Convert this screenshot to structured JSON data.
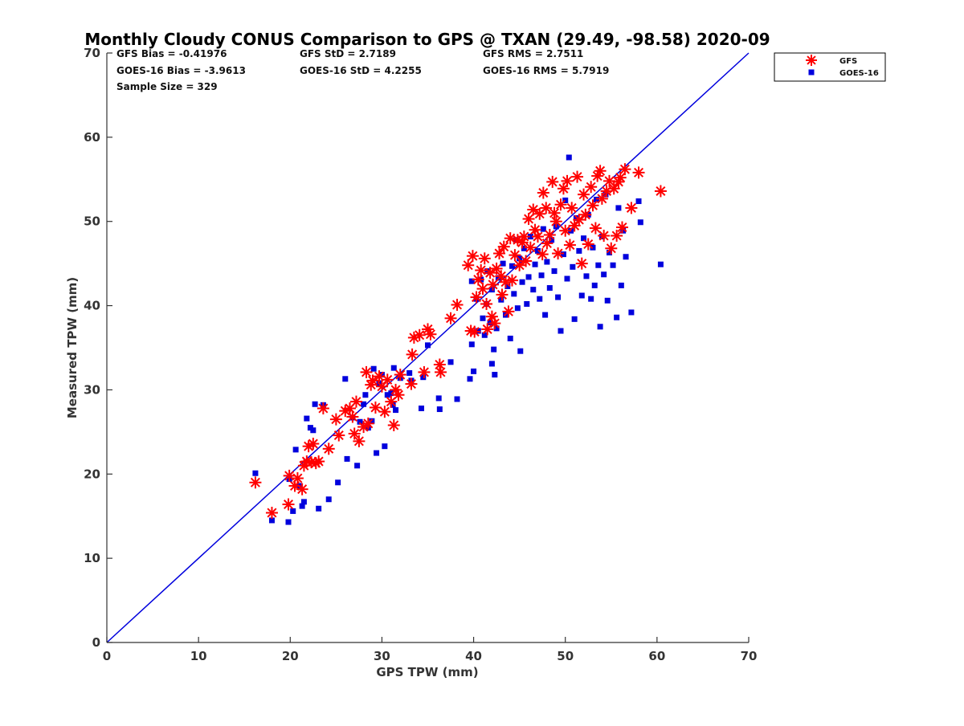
{
  "chart_data": {
    "type": "scatter",
    "title": "Monthly Cloudy CONUS Comparison to GPS @ TXAN (29.49, -98.58) 2020-09",
    "xlabel": "GPS TPW (mm)",
    "ylabel": "Measured TPW (mm)",
    "xlim": [
      0,
      70
    ],
    "ylim": [
      0,
      70
    ],
    "xticks": [
      "0",
      "10",
      "20",
      "30",
      "40",
      "50",
      "60",
      "70"
    ],
    "yticks": [
      "0",
      "10",
      "20",
      "30",
      "40",
      "50",
      "60",
      "70"
    ],
    "grid": false,
    "legend_position": "top-right outside",
    "stats": {
      "gfs_bias": "GFS Bias = -0.41976",
      "gfs_std": "GFS StD = 2.7189",
      "gfs_rms": "GFS RMS = 2.7511",
      "goes_bias": "GOES-16 Bias = -3.9613",
      "goes_std": "GOES-16 StD = 4.2255",
      "goes_rms": "GOES-16 RMS = 5.7919",
      "sample_size": "Sample Size = 329"
    },
    "reference_line": {
      "x": [
        0,
        70
      ],
      "y": [
        0,
        70
      ],
      "color": "#0000dd"
    },
    "series": [
      {
        "name": "GFS",
        "marker": "asterisk",
        "color": "#ff0000",
        "points": [
          [
            16.2,
            19.0
          ],
          [
            18.0,
            15.4
          ],
          [
            19.8,
            16.4
          ],
          [
            19.9,
            19.8
          ],
          [
            20.5,
            18.6
          ],
          [
            20.8,
            19.5
          ],
          [
            21.3,
            18.2
          ],
          [
            21.5,
            21.0
          ],
          [
            21.8,
            21.5
          ],
          [
            22.0,
            23.3
          ],
          [
            22.3,
            21.4
          ],
          [
            22.5,
            23.6
          ],
          [
            22.8,
            21.3
          ],
          [
            23.1,
            21.5
          ],
          [
            23.6,
            27.8
          ],
          [
            24.2,
            23.0
          ],
          [
            25.0,
            26.5
          ],
          [
            25.3,
            24.6
          ],
          [
            26.0,
            27.5
          ],
          [
            26.5,
            27.8
          ],
          [
            26.8,
            26.8
          ],
          [
            27.0,
            24.8
          ],
          [
            27.2,
            28.6
          ],
          [
            27.5,
            23.9
          ],
          [
            28.0,
            25.6
          ],
          [
            28.3,
            32.1
          ],
          [
            28.5,
            26.0
          ],
          [
            28.8,
            30.6
          ],
          [
            29.0,
            31.1
          ],
          [
            29.3,
            27.9
          ],
          [
            29.7,
            31.6
          ],
          [
            30.0,
            30.4
          ],
          [
            30.3,
            27.4
          ],
          [
            30.6,
            31.2
          ],
          [
            31.0,
            28.6
          ],
          [
            31.3,
            25.8
          ],
          [
            31.5,
            30.0
          ],
          [
            31.8,
            29.4
          ],
          [
            32.0,
            31.8
          ],
          [
            33.2,
            30.7
          ],
          [
            33.5,
            36.2
          ],
          [
            33.3,
            34.2
          ],
          [
            34.1,
            36.5
          ],
          [
            34.6,
            32.1
          ],
          [
            35.0,
            37.2
          ],
          [
            35.3,
            36.6
          ],
          [
            36.3,
            33.0
          ],
          [
            36.4,
            32.1
          ],
          [
            37.5,
            38.5
          ],
          [
            38.2,
            40.1
          ],
          [
            39.4,
            44.8
          ],
          [
            39.7,
            37.0
          ],
          [
            39.9,
            45.9
          ],
          [
            40.1,
            36.9
          ],
          [
            40.3,
            41.0
          ],
          [
            40.5,
            43.1
          ],
          [
            40.8,
            44.2
          ],
          [
            41.0,
            42.0
          ],
          [
            41.2,
            45.6
          ],
          [
            41.4,
            40.2
          ],
          [
            41.5,
            37.2
          ],
          [
            41.8,
            43.9
          ],
          [
            42.0,
            38.7
          ],
          [
            42.1,
            42.5
          ],
          [
            42.3,
            37.9
          ],
          [
            42.5,
            44.4
          ],
          [
            42.8,
            46.2
          ],
          [
            43.0,
            43.5
          ],
          [
            43.1,
            41.3
          ],
          [
            43.3,
            47.0
          ],
          [
            43.5,
            42.8
          ],
          [
            43.8,
            39.3
          ],
          [
            44.0,
            48.0
          ],
          [
            44.2,
            43.0
          ],
          [
            44.5,
            46.0
          ],
          [
            44.8,
            47.8
          ],
          [
            45.0,
            44.8
          ],
          [
            45.3,
            47.5
          ],
          [
            45.5,
            48.2
          ],
          [
            45.7,
            45.3
          ],
          [
            46.0,
            50.3
          ],
          [
            46.2,
            46.9
          ],
          [
            46.5,
            51.4
          ],
          [
            46.7,
            49.0
          ],
          [
            47.0,
            48.2
          ],
          [
            47.2,
            50.9
          ],
          [
            47.5,
            46.1
          ],
          [
            47.6,
            53.4
          ],
          [
            47.9,
            51.6
          ],
          [
            48.0,
            47.4
          ],
          [
            48.3,
            48.4
          ],
          [
            48.6,
            54.7
          ],
          [
            48.8,
            51.0
          ],
          [
            49.0,
            50.0
          ],
          [
            49.2,
            46.2
          ],
          [
            49.5,
            52.0
          ],
          [
            49.8,
            53.9
          ],
          [
            50.0,
            48.9
          ],
          [
            50.2,
            54.8
          ],
          [
            50.5,
            47.2
          ],
          [
            50.7,
            51.6
          ],
          [
            51.0,
            49.5
          ],
          [
            51.3,
            55.3
          ],
          [
            51.5,
            50.2
          ],
          [
            51.8,
            45.0
          ],
          [
            52.0,
            53.2
          ],
          [
            52.2,
            50.8
          ],
          [
            52.5,
            47.3
          ],
          [
            52.8,
            54.1
          ],
          [
            53.0,
            51.9
          ],
          [
            53.3,
            49.2
          ],
          [
            53.5,
            55.4
          ],
          [
            53.8,
            56.0
          ],
          [
            54.0,
            52.7
          ],
          [
            54.2,
            48.3
          ],
          [
            54.5,
            53.6
          ],
          [
            54.8,
            54.8
          ],
          [
            55.0,
            46.8
          ],
          [
            55.3,
            53.9
          ],
          [
            55.6,
            48.3
          ],
          [
            55.8,
            54.7
          ],
          [
            56.0,
            55.2
          ],
          [
            56.2,
            49.3
          ],
          [
            56.5,
            56.2
          ],
          [
            57.2,
            51.6
          ],
          [
            58.0,
            55.8
          ],
          [
            60.4,
            53.6
          ]
        ]
      },
      {
        "name": "GOES-16",
        "marker": "square",
        "color": "#0000dd",
        "points": [
          [
            16.2,
            20.1
          ],
          [
            18.0,
            14.5
          ],
          [
            19.8,
            14.3
          ],
          [
            19.9,
            19.4
          ],
          [
            20.3,
            15.6
          ],
          [
            20.6,
            22.9
          ],
          [
            21.0,
            18.6
          ],
          [
            21.3,
            16.2
          ],
          [
            21.5,
            16.7
          ],
          [
            21.8,
            26.6
          ],
          [
            22.2,
            25.5
          ],
          [
            22.5,
            25.2
          ],
          [
            22.7,
            28.3
          ],
          [
            23.1,
            15.9
          ],
          [
            23.6,
            28.2
          ],
          [
            24.2,
            17.0
          ],
          [
            25.2,
            19.0
          ],
          [
            26.0,
            31.3
          ],
          [
            26.2,
            21.8
          ],
          [
            26.8,
            26.7
          ],
          [
            27.3,
            21.0
          ],
          [
            27.6,
            26.2
          ],
          [
            28.0,
            28.3
          ],
          [
            28.2,
            29.4
          ],
          [
            28.5,
            25.5
          ],
          [
            28.9,
            26.3
          ],
          [
            29.1,
            32.5
          ],
          [
            29.4,
            22.5
          ],
          [
            29.7,
            30.8
          ],
          [
            30.0,
            31.8
          ],
          [
            30.3,
            23.3
          ],
          [
            30.6,
            29.4
          ],
          [
            31.0,
            29.6
          ],
          [
            31.2,
            28.2
          ],
          [
            31.3,
            32.6
          ],
          [
            31.5,
            27.6
          ],
          [
            32.0,
            31.4
          ],
          [
            33.0,
            32.0
          ],
          [
            33.2,
            31.1
          ],
          [
            34.3,
            27.8
          ],
          [
            34.5,
            31.5
          ],
          [
            35.0,
            35.3
          ],
          [
            36.2,
            29.0
          ],
          [
            36.3,
            27.7
          ],
          [
            37.5,
            33.3
          ],
          [
            38.2,
            28.9
          ],
          [
            39.6,
            31.3
          ],
          [
            39.8,
            35.4
          ],
          [
            39.8,
            42.9
          ],
          [
            40.0,
            32.2
          ],
          [
            40.3,
            40.8
          ],
          [
            40.5,
            37.0
          ],
          [
            40.8,
            43.1
          ],
          [
            41.0,
            38.5
          ],
          [
            41.2,
            36.5
          ],
          [
            41.4,
            40.2
          ],
          [
            41.5,
            44.1
          ],
          [
            41.8,
            38.0
          ],
          [
            42.0,
            33.1
          ],
          [
            42.0,
            41.9
          ],
          [
            42.2,
            34.8
          ],
          [
            42.3,
            31.8
          ],
          [
            42.5,
            37.3
          ],
          [
            42.7,
            43.3
          ],
          [
            43.0,
            40.7
          ],
          [
            43.2,
            45.0
          ],
          [
            43.5,
            38.9
          ],
          [
            43.7,
            42.3
          ],
          [
            44.0,
            36.1
          ],
          [
            44.2,
            44.7
          ],
          [
            44.4,
            41.4
          ],
          [
            44.6,
            47.8
          ],
          [
            44.8,
            39.7
          ],
          [
            45.0,
            45.6
          ],
          [
            45.1,
            34.6
          ],
          [
            45.3,
            42.8
          ],
          [
            45.5,
            46.8
          ],
          [
            45.8,
            40.2
          ],
          [
            46.0,
            43.4
          ],
          [
            46.2,
            48.2
          ],
          [
            46.5,
            41.9
          ],
          [
            46.7,
            44.9
          ],
          [
            47.0,
            46.5
          ],
          [
            47.2,
            40.8
          ],
          [
            47.4,
            43.6
          ],
          [
            47.6,
            49.1
          ],
          [
            47.8,
            38.9
          ],
          [
            48.0,
            45.2
          ],
          [
            48.3,
            42.1
          ],
          [
            48.5,
            47.8
          ],
          [
            48.8,
            44.1
          ],
          [
            49.0,
            49.4
          ],
          [
            49.2,
            41.0
          ],
          [
            49.5,
            37.0
          ],
          [
            49.8,
            46.1
          ],
          [
            50.0,
            52.5
          ],
          [
            50.2,
            43.2
          ],
          [
            50.4,
            57.6
          ],
          [
            50.6,
            48.9
          ],
          [
            50.8,
            44.6
          ],
          [
            51.0,
            38.4
          ],
          [
            51.2,
            50.4
          ],
          [
            51.5,
            46.5
          ],
          [
            51.8,
            41.2
          ],
          [
            52.0,
            48.0
          ],
          [
            52.3,
            43.5
          ],
          [
            52.5,
            50.8
          ],
          [
            52.8,
            40.8
          ],
          [
            53.0,
            46.9
          ],
          [
            53.2,
            42.4
          ],
          [
            53.4,
            52.6
          ],
          [
            53.6,
            44.8
          ],
          [
            53.8,
            37.5
          ],
          [
            54.0,
            48.2
          ],
          [
            54.2,
            43.7
          ],
          [
            54.4,
            53.2
          ],
          [
            54.6,
            40.6
          ],
          [
            54.8,
            46.3
          ],
          [
            55.2,
            44.8
          ],
          [
            55.6,
            38.6
          ],
          [
            55.8,
            51.6
          ],
          [
            56.1,
            42.4
          ],
          [
            56.3,
            48.9
          ],
          [
            56.6,
            45.8
          ],
          [
            57.2,
            39.2
          ],
          [
            58.2,
            49.9
          ],
          [
            58.0,
            52.4
          ],
          [
            60.4,
            44.9
          ]
        ]
      }
    ]
  }
}
